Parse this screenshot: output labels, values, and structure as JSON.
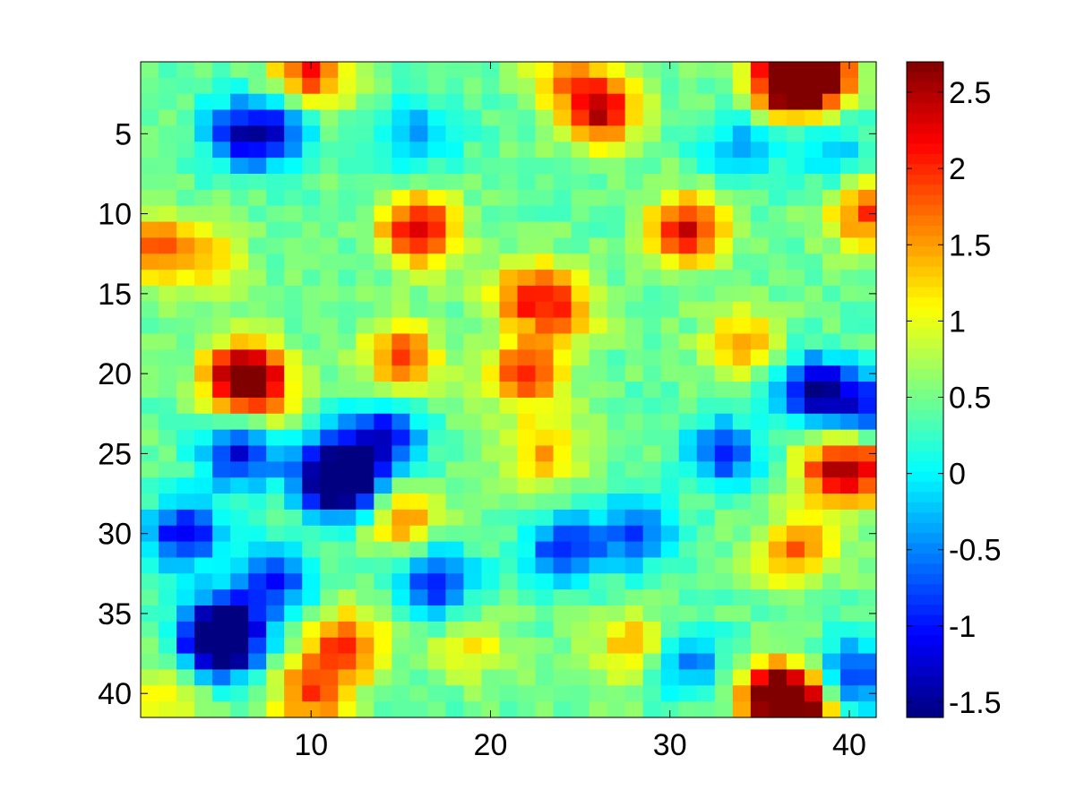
{
  "chart_data": {
    "type": "heatmap",
    "title": "",
    "xlabel": "",
    "ylabel": "",
    "grid": false,
    "colormap": "jet",
    "rows": 41,
    "cols": 41,
    "xlim": [
      0.5,
      41.5
    ],
    "ylim": [
      0.5,
      41.5
    ],
    "y_direction": "reversed",
    "x_ticks": [
      10,
      20,
      30,
      40
    ],
    "y_ticks": [
      5,
      10,
      15,
      20,
      25,
      30,
      35,
      40
    ],
    "x_tick_labels": [
      "10",
      "20",
      "30",
      "40"
    ],
    "y_tick_labels": [
      "5",
      "10",
      "15",
      "20",
      "25",
      "30",
      "35",
      "40"
    ],
    "colorbar": {
      "range": [
        -1.6,
        2.7
      ],
      "ticks": [
        -1.5,
        -1,
        -0.5,
        0,
        0.5,
        1,
        1.5,
        2,
        2.5
      ],
      "tick_labels": [
        "-1.5",
        "-1",
        "-0.5",
        "0",
        "0.5",
        "1",
        "1.5",
        "2",
        "2.5"
      ]
    },
    "features": [
      {
        "row": 1,
        "col": 37,
        "value": 2.6
      },
      {
        "row": 1,
        "col": 38,
        "value": 2.1
      },
      {
        "row": 1,
        "col": 10,
        "value": 2.0
      },
      {
        "row": 2,
        "col": 37,
        "value": 2.0
      },
      {
        "row": 1,
        "col": 24,
        "value": 1.2
      },
      {
        "row": 3,
        "col": 26,
        "value": 1.5
      },
      {
        "row": 4,
        "col": 26,
        "value": 1.4
      },
      {
        "row": 5,
        "col": 6,
        "value": -0.8
      },
      {
        "row": 5,
        "col": 8,
        "value": -0.6
      },
      {
        "row": 5,
        "col": 16,
        "value": -0.4
      },
      {
        "row": 6,
        "col": 34,
        "value": -0.4
      },
      {
        "row": 6,
        "col": 39,
        "value": -0.3
      },
      {
        "row": 11,
        "col": 16,
        "value": 2.3
      },
      {
        "row": 11,
        "col": 31,
        "value": 2.2
      },
      {
        "row": 10,
        "col": 41,
        "value": 1.8
      },
      {
        "row": 12,
        "col": 1,
        "value": 1.6
      },
      {
        "row": 13,
        "col": 4,
        "value": 1.3
      },
      {
        "row": 15,
        "col": 22,
        "value": 1.7
      },
      {
        "row": 16,
        "col": 24,
        "value": 1.4
      },
      {
        "row": 18,
        "col": 34,
        "value": 1.4
      },
      {
        "row": 20,
        "col": 6,
        "value": 2.0
      },
      {
        "row": 21,
        "col": 7,
        "value": 1.9
      },
      {
        "row": 19,
        "col": 15,
        "value": 1.8
      },
      {
        "row": 20,
        "col": 22,
        "value": 2.0
      },
      {
        "row": 21,
        "col": 38,
        "value": -1.3
      },
      {
        "row": 22,
        "col": 41,
        "value": -0.9
      },
      {
        "row": 25,
        "col": 6,
        "value": -1.1
      },
      {
        "row": 26,
        "col": 11,
        "value": -1.1
      },
      {
        "row": 27,
        "col": 12,
        "value": -1.5
      },
      {
        "row": 24,
        "col": 14,
        "value": -1.1
      },
      {
        "row": 25,
        "col": 23,
        "value": 1.4
      },
      {
        "row": 25,
        "col": 33,
        "value": -0.8
      },
      {
        "row": 26,
        "col": 39,
        "value": 1.8
      },
      {
        "row": 26,
        "col": 41,
        "value": 1.6
      },
      {
        "row": 29,
        "col": 15,
        "value": 1.6
      },
      {
        "row": 30,
        "col": 3,
        "value": -1.1
      },
      {
        "row": 31,
        "col": 24,
        "value": -0.8
      },
      {
        "row": 30,
        "col": 28,
        "value": -0.8
      },
      {
        "row": 31,
        "col": 37,
        "value": 1.7
      },
      {
        "row": 33,
        "col": 17,
        "value": -1.0
      },
      {
        "row": 33,
        "col": 8,
        "value": -0.9
      },
      {
        "row": 36,
        "col": 5,
        "value": -1.4
      },
      {
        "row": 37,
        "col": 5,
        "value": -1.3
      },
      {
        "row": 37,
        "col": 12,
        "value": 1.9
      },
      {
        "row": 37,
        "col": 19,
        "value": 1.1
      },
      {
        "row": 37,
        "col": 28,
        "value": 1.4
      },
      {
        "row": 38,
        "col": 31,
        "value": -0.5
      },
      {
        "row": 39,
        "col": 40,
        "value": -1.0
      },
      {
        "row": 40,
        "col": 36,
        "value": 2.2
      },
      {
        "row": 41,
        "col": 37,
        "value": 2.6
      },
      {
        "row": 40,
        "col": 10,
        "value": 1.8
      },
      {
        "row": 40,
        "col": 2,
        "value": 1.1
      }
    ]
  }
}
